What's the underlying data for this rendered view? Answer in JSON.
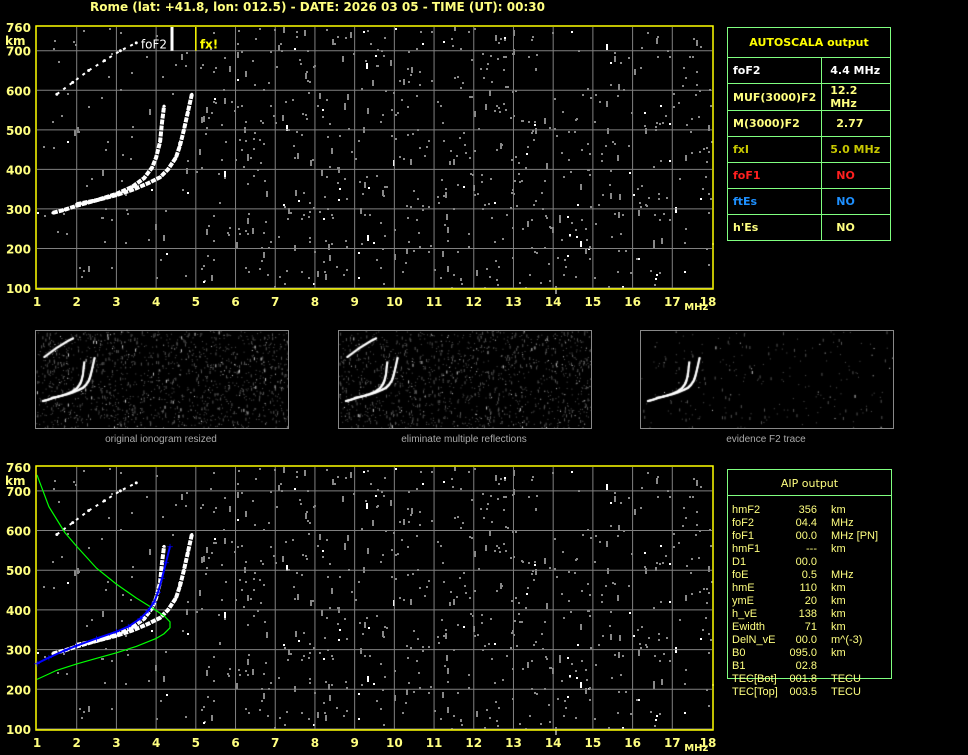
{
  "title": "Rome (lat: +41.8, lon: 012.5) - DATE: 2026 03 05 - TIME (UT): 00:30",
  "colors": {
    "axis": "#ffff00",
    "label": "#ffff80",
    "grid": "#808080",
    "trace": "#ffffff",
    "profile": "#00ff00",
    "aip_trace": "#0000ff",
    "table_border": "#80ff80"
  },
  "chart_data": [
    {
      "type": "scatter",
      "name_label": "ionogram-autoscala",
      "xlabel": "MHz",
      "ylabel": "km",
      "xlim": [
        1,
        18
      ],
      "ylim": [
        100,
        760
      ],
      "xticks": [
        "1",
        "2",
        "3",
        "4",
        "5",
        "6",
        "7",
        "8",
        "9",
        "10",
        "11",
        "12",
        "13",
        "14",
        "15",
        "16",
        "17",
        "18"
      ],
      "yticks": [
        "760",
        "700",
        "600",
        "500",
        "400",
        "300",
        "200",
        "100"
      ],
      "grid": true,
      "markers": [
        {
          "label": "foF2",
          "x": 4.4,
          "color": "#ffffff"
        },
        {
          "label": "fx!",
          "x": 5.0,
          "color": "#ffff00"
        }
      ],
      "traces": [
        {
          "x": [
            1.4,
            1.7,
            2.0,
            2.5,
            3.0,
            3.4,
            3.7,
            3.9,
            4.0,
            4.1,
            4.15,
            4.2
          ],
          "y": [
            290,
            298,
            308,
            322,
            338,
            356,
            378,
            405,
            430,
            470,
            520,
            560
          ]
        },
        {
          "x": [
            2.0,
            2.5,
            3.0,
            3.4,
            3.8,
            4.1,
            4.3,
            4.5,
            4.6,
            4.7,
            4.8,
            4.9
          ],
          "y": [
            312,
            322,
            335,
            348,
            365,
            380,
            400,
            430,
            460,
            500,
            545,
            590
          ]
        },
        {
          "x": [
            1.5,
            1.9,
            2.3,
            2.7,
            3.1,
            3.5
          ],
          "y": [
            590,
            620,
            650,
            675,
            700,
            720
          ]
        }
      ]
    },
    {
      "type": "scatter",
      "name_label": "ionogram-aip",
      "xlabel": "MHz",
      "ylabel": "km",
      "xlim": [
        1,
        18
      ],
      "ylim": [
        100,
        760
      ],
      "xticks": [
        "1",
        "2",
        "3",
        "4",
        "5",
        "6",
        "7",
        "8",
        "9",
        "10",
        "11",
        "12",
        "13",
        "14",
        "15",
        "16",
        "17",
        "18"
      ],
      "yticks": [
        "760",
        "700",
        "600",
        "500",
        "400",
        "300",
        "200",
        "100"
      ],
      "grid": true,
      "traces": [
        {
          "x": [
            1.4,
            1.7,
            2.0,
            2.5,
            3.0,
            3.4,
            3.7,
            3.9,
            4.0,
            4.1,
            4.15,
            4.2
          ],
          "y": [
            290,
            298,
            308,
            322,
            338,
            356,
            378,
            405,
            430,
            470,
            520,
            560
          ]
        },
        {
          "x": [
            2.0,
            2.5,
            3.0,
            3.4,
            3.8,
            4.1,
            4.3,
            4.5,
            4.6,
            4.7,
            4.8,
            4.9
          ],
          "y": [
            312,
            322,
            335,
            348,
            365,
            380,
            400,
            430,
            460,
            500,
            545,
            590
          ]
        },
        {
          "x": [
            1.5,
            1.9,
            2.3,
            2.7,
            3.1,
            3.5
          ],
          "y": [
            590,
            620,
            650,
            675,
            700,
            720
          ]
        }
      ],
      "aip_trace": {
        "x": [
          1.0,
          1.3,
          1.7,
          2.0,
          2.5,
          3.0,
          3.3,
          3.6,
          3.8,
          3.95,
          4.05,
          4.15,
          4.25,
          4.35
        ],
        "y": [
          265,
          280,
          298,
          310,
          328,
          345,
          358,
          378,
          398,
          420,
          445,
          480,
          520,
          560
        ]
      },
      "profile": {
        "x": [
          1.0,
          1.3,
          1.7,
          2.0,
          2.5,
          3.0,
          3.5,
          3.9,
          4.2,
          4.35,
          4.35,
          4.2,
          4.0,
          3.5,
          3.0,
          2.5,
          2.0,
          1.5,
          1.0
        ],
        "y": [
          740,
          660,
          595,
          560,
          505,
          465,
          430,
          405,
          385,
          370,
          355,
          340,
          328,
          308,
          292,
          278,
          264,
          248,
          225
        ]
      }
    }
  ],
  "thumbnails": [
    {
      "caption": "original ionogram resized"
    },
    {
      "caption": "eliminate multiple reflections"
    },
    {
      "caption": "evidence F2 trace"
    }
  ],
  "autoscala": {
    "header": "AUTOSCALA output",
    "rows": [
      {
        "name": "foF2",
        "value": "4.4 MHz",
        "color": "#ffffff"
      },
      {
        "name": "MUF(3000)F2",
        "value": "12.2 MHz",
        "color": "#ffff80"
      },
      {
        "name": "M(3000)F2",
        "value": "2.77",
        "color": "#ffff80"
      },
      {
        "name": "fxI",
        "value": "5.0 MHz",
        "color": "#c8c800"
      },
      {
        "name": "foF1",
        "value": "NO",
        "color": "#ff2020"
      },
      {
        "name": "ftEs",
        "value": "NO",
        "color": "#1e90ff"
      },
      {
        "name": "h'Es",
        "value": "NO",
        "color": "#ffff80"
      }
    ]
  },
  "aip": {
    "header": "AIP output",
    "rows": [
      {
        "name": "hmF2",
        "value": "356",
        "unit": "km"
      },
      {
        "name": "foF2",
        "value": "04.4",
        "unit": "MHz"
      },
      {
        "name": "foF1",
        "value": "00.0",
        "unit": "MHz    [PN]"
      },
      {
        "name": "hmF1",
        "value": "---",
        "unit": "km"
      },
      {
        "name": "D1",
        "value": "00.0",
        "unit": ""
      },
      {
        "name": "foE",
        "value": "0.5",
        "unit": "MHz"
      },
      {
        "name": "hmE",
        "value": "110",
        "unit": "km"
      },
      {
        "name": "ymE",
        "value": "20",
        "unit": "km"
      },
      {
        "name": "h_vE",
        "value": "138",
        "unit": "km"
      },
      {
        "name": "Ewidth",
        "value": "71",
        "unit": "km"
      },
      {
        "name": "DelN_vE",
        "value": "00.0",
        "unit": "m^(-3)"
      },
      {
        "name": "B0",
        "value": "095.0",
        "unit": "km"
      },
      {
        "name": "B1",
        "value": "02.8",
        "unit": ""
      },
      {
        "name": "TEC[Bot]",
        "value": "001.8",
        "unit": "TECU"
      },
      {
        "name": "TEC[Top]",
        "value": "003.5",
        "unit": "TECU"
      }
    ]
  }
}
